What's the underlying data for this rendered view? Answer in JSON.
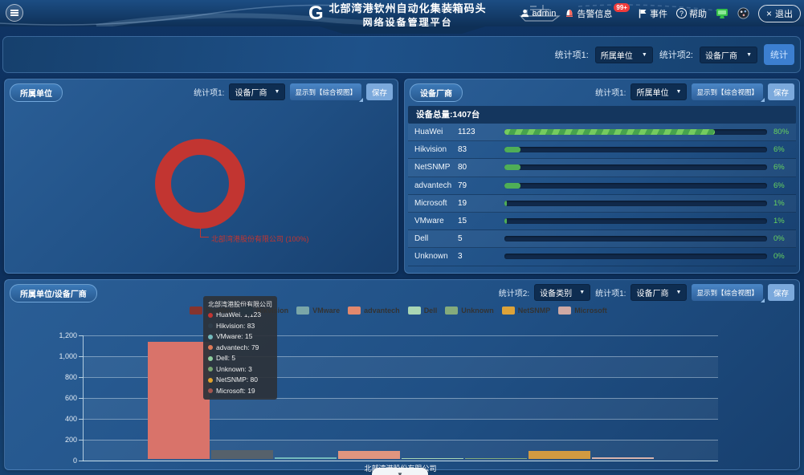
{
  "header": {
    "logo_text": "G",
    "title_line1": "北部湾港钦州自动化集装箱码头",
    "title_line2": "网络设备管理平台",
    "user_label": "admin",
    "alarm_label": "告警信息",
    "alarm_badge": "99+",
    "event_label": "事件",
    "help_label": "帮助",
    "logout_label": "退出"
  },
  "filter_bar": {
    "stat1_label": "统计项1:",
    "stat1_value": "所属单位",
    "stat2_label": "统计项2:",
    "stat2_value": "设备厂商",
    "submit_label": "统计"
  },
  "left_panel": {
    "title": "所属单位",
    "stat1_label": "统计项1:",
    "stat1_value": "设备厂商",
    "show_to_label": "显示到【综合视图】",
    "save_label": "保存",
    "donut_label": "北部湾港股份有限公司 (100%)",
    "donut_color": "#c23531"
  },
  "right_panel": {
    "title": "设备厂商",
    "stat1_label": "统计项1:",
    "stat1_value": "所属单位",
    "show_to_label": "显示到【综合视图】",
    "save_label": "保存",
    "total_label": "设备总量:1407台",
    "bar_color": "#4fae57",
    "rows": [
      {
        "name": "HuaWei",
        "count": "1123",
        "percent": "80%",
        "pct": 80,
        "striped": true
      },
      {
        "name": "Hikvision",
        "count": "83",
        "percent": "6%",
        "pct": 6,
        "striped": false
      },
      {
        "name": "NetSNMP",
        "count": "80",
        "percent": "6%",
        "pct": 6,
        "striped": false
      },
      {
        "name": "advantech",
        "count": "79",
        "percent": "6%",
        "pct": 6,
        "striped": false
      },
      {
        "name": "Microsoft",
        "count": "19",
        "percent": "1%",
        "pct": 1,
        "striped": false
      },
      {
        "name": "VMware",
        "count": "15",
        "percent": "1%",
        "pct": 1,
        "striped": false
      },
      {
        "name": "Dell",
        "count": "5",
        "percent": "0%",
        "pct": 0,
        "striped": false
      },
      {
        "name": "Unknown",
        "count": "3",
        "percent": "0%",
        "pct": 0,
        "striped": false
      }
    ]
  },
  "bottom_panel": {
    "title": "所属单位/设备厂商",
    "stat2_label": "统计项2:",
    "stat2_value": "设备类别",
    "stat1_label": "统计项1:",
    "stat1_value": "设备厂商",
    "show_to_label": "显示到【综合视图】",
    "save_label": "保存",
    "x_label": "北部湾港股份有限公司",
    "tooltip_title": "北部湾港股份有限公司",
    "y_ticks": [
      "0",
      "200",
      "400",
      "600",
      "800",
      "1,000",
      "1,200"
    ],
    "y_max": 1200,
    "series": [
      {
        "name": "HuaWei",
        "value": 1123,
        "display": "1,123",
        "bar_color": "#d9736a",
        "legend_color": "#86342e",
        "dot_color": "#c23531"
      },
      {
        "name": "Hikvision",
        "value": 83,
        "display": "83",
        "bar_color": "#56616b",
        "legend_color": "#27343f",
        "dot_color": "#2f3d4a"
      },
      {
        "name": "VMware",
        "value": 15,
        "display": "15",
        "bar_color": "#73b9bc",
        "legend_color": "#7aa6a8",
        "dot_color": "#73b9bc"
      },
      {
        "name": "advantech",
        "value": 79,
        "display": "79",
        "bar_color": "#e0957f",
        "legend_color": "#e2886d",
        "dot_color": "#e07a58"
      },
      {
        "name": "Dell",
        "value": 5,
        "display": "5",
        "bar_color": "#a9d6b4",
        "legend_color": "#a9d6b4",
        "dot_color": "#8fce9e"
      },
      {
        "name": "Unknown",
        "value": 3,
        "display": "3",
        "bar_color": "#84ab7c",
        "legend_color": "#84ab7c",
        "dot_color": "#77a571"
      },
      {
        "name": "NetSNMP",
        "value": 80,
        "display": "80",
        "bar_color": "#d29a41",
        "legend_color": "#dda339",
        "dot_color": "#e0a22e"
      },
      {
        "name": "Microsoft",
        "value": 19,
        "display": "19",
        "bar_color": "#d7b3ad",
        "legend_color": "#cfa9a4",
        "dot_color": "#a2554e"
      }
    ]
  },
  "chart_data": [
    {
      "type": "pie",
      "title": "所属单位",
      "labels": [
        "北部湾港股份有限公司"
      ],
      "values": [
        100
      ],
      "unit": "percent",
      "colors": [
        "#c23531"
      ],
      "annotation": "北部湾港股份有限公司 (100%)",
      "style": "donut"
    },
    {
      "type": "bar",
      "orientation": "horizontal",
      "title": "设备厂商",
      "subtitle": "设备总量:1407台",
      "categories": [
        "HuaWei",
        "Hikvision",
        "NetSNMP",
        "advantech",
        "Microsoft",
        "VMware",
        "Dell",
        "Unknown"
      ],
      "values": [
        1123,
        83,
        80,
        79,
        19,
        15,
        5,
        3
      ],
      "percents": [
        80,
        6,
        6,
        6,
        1,
        1,
        0,
        0
      ],
      "bar_color": "#4fae57"
    },
    {
      "type": "bar",
      "title": "所属单位/设备厂商",
      "categories": [
        "北部湾港股份有限公司"
      ],
      "series": [
        {
          "name": "HuaWei",
          "values": [
            1123
          ]
        },
        {
          "name": "Hikvision",
          "values": [
            83
          ]
        },
        {
          "name": "VMware",
          "values": [
            15
          ]
        },
        {
          "name": "advantech",
          "values": [
            79
          ]
        },
        {
          "name": "Dell",
          "values": [
            5
          ]
        },
        {
          "name": "Unknown",
          "values": [
            3
          ]
        },
        {
          "name": "NetSNMP",
          "values": [
            80
          ]
        },
        {
          "name": "Microsoft",
          "values": [
            19
          ]
        }
      ],
      "ylim": [
        0,
        1200
      ],
      "yticks": [
        0,
        200,
        400,
        600,
        800,
        1000,
        1200
      ],
      "legend_position": "top",
      "grid": true,
      "tooltip_visible_for": "北部湾港股份有限公司"
    }
  ]
}
